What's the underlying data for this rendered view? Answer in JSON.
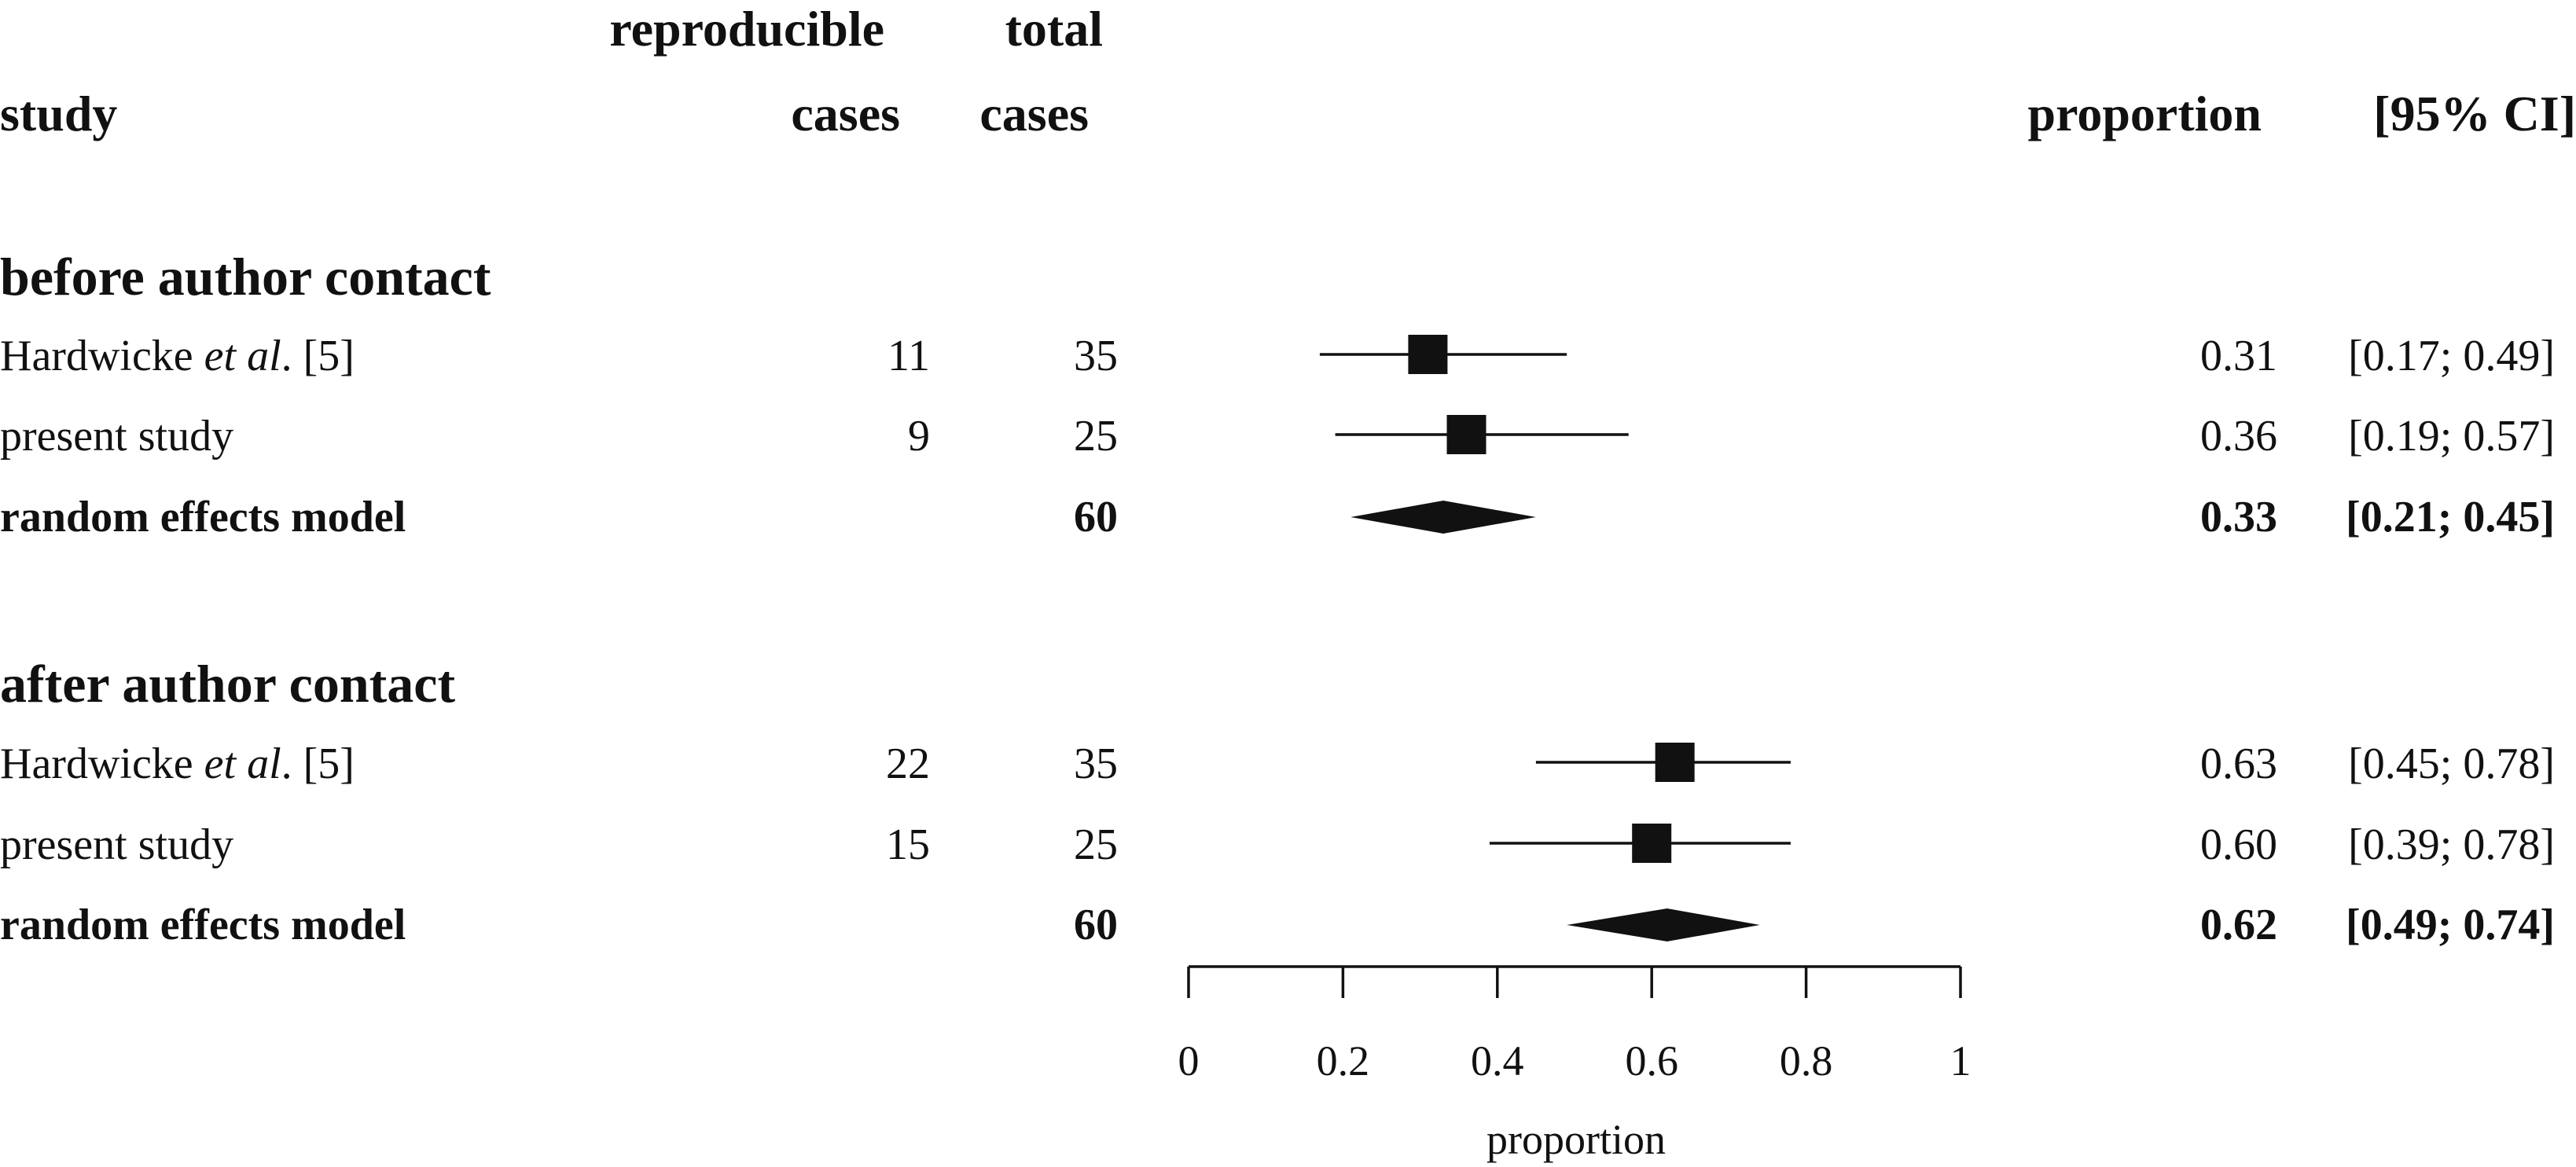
{
  "chart_data": {
    "type": "forest",
    "xlabel": "proportion",
    "xlim": [
      0,
      1
    ],
    "xticks": [
      0,
      0.2,
      0.4,
      0.6,
      0.8,
      1
    ],
    "xtick_labels": [
      "0",
      "0.2",
      "0.4",
      "0.6",
      "0.8",
      "1"
    ],
    "headers": {
      "study": "study",
      "reproducible_line1": "reproducible",
      "reproducible_line2": "cases",
      "total_line1": "total",
      "total_line2": "cases",
      "proportion": "proportion",
      "ci": "[95% CI]"
    },
    "sections": [
      {
        "title": "before author contact",
        "studies": [
          {
            "name": "Hardwicke",
            "name_italic": "et al",
            "name_suffix": ". [5]",
            "reproducible": "11",
            "total": "35",
            "proportion": 0.31,
            "ci_low": 0.17,
            "ci_high": 0.49,
            "proportion_text": "0.31",
            "ci_text": "[0.17; 0.49]"
          },
          {
            "name": "present study",
            "name_italic": "",
            "name_suffix": "",
            "reproducible": "9",
            "total": "25",
            "proportion": 0.36,
            "ci_low": 0.19,
            "ci_high": 0.57,
            "proportion_text": "0.36",
            "ci_text": "[0.19; 0.57]"
          }
        ],
        "model": {
          "name": "random effects model",
          "total": "60",
          "proportion": 0.33,
          "ci_low": 0.21,
          "ci_high": 0.45,
          "proportion_text": "0.33",
          "ci_text": "[0.21; 0.45]"
        }
      },
      {
        "title": "after author contact",
        "studies": [
          {
            "name": "Hardwicke",
            "name_italic": "et al",
            "name_suffix": ". [5]",
            "reproducible": "22",
            "total": "35",
            "proportion": 0.63,
            "ci_low": 0.45,
            "ci_high": 0.78,
            "proportion_text": "0.63",
            "ci_text": "[0.45; 0.78]"
          },
          {
            "name": "present study",
            "name_italic": "",
            "name_suffix": "",
            "reproducible": "15",
            "total": "25",
            "proportion": 0.6,
            "ci_low": 0.39,
            "ci_high": 0.78,
            "proportion_text": "0.60",
            "ci_text": "[0.39; 0.78]"
          }
        ],
        "model": {
          "name": "random effects model",
          "total": "60",
          "proportion": 0.62,
          "ci_low": 0.49,
          "ci_high": 0.74,
          "proportion_text": "0.62",
          "ci_text": "[0.49; 0.74]"
        }
      }
    ],
    "colors": {
      "ink": "#111111",
      "background": "#ffffff"
    }
  }
}
